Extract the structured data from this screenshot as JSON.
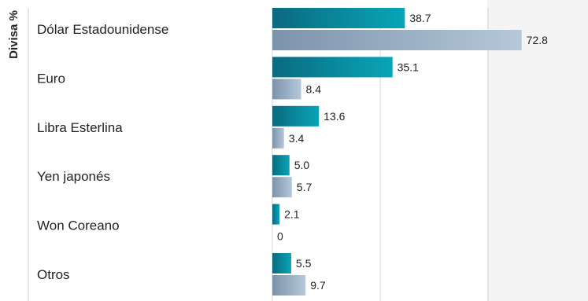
{
  "chart_data": {
    "type": "bar",
    "orientation": "horizontal",
    "ylabel": "Divisa %",
    "categories": [
      "Dólar Estadounidense",
      "Euro",
      "Libra Esterlina",
      "Yen japonés",
      "Won Coreano",
      "Otros"
    ],
    "series": [
      {
        "values": [
          38.7,
          35.1,
          13.6,
          5.0,
          2.1,
          5.5
        ],
        "value_labels": [
          "38.7",
          "35.1",
          "13.6",
          "5.0",
          "2.1",
          "5.5"
        ],
        "color": "#0a9fb0"
      },
      {
        "values": [
          72.8,
          8.4,
          3.4,
          5.7,
          0,
          9.7
        ],
        "value_labels": [
          "72.8",
          "8.4",
          "3.4",
          "5.7",
          "0",
          "9.7"
        ],
        "color": "#a9bed3"
      }
    ],
    "xlim": [
      0,
      100
    ],
    "grid": true
  }
}
